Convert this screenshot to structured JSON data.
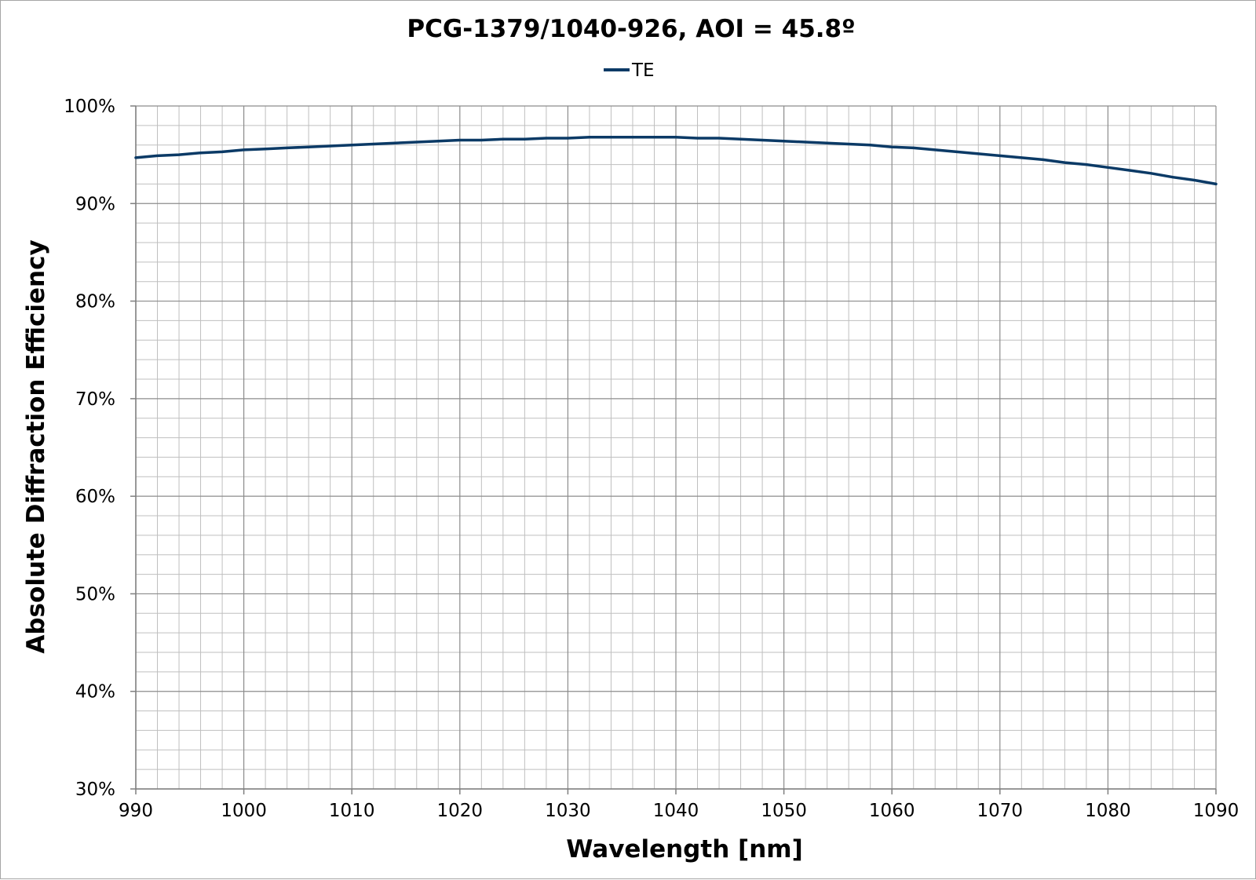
{
  "chart_data": {
    "type": "line",
    "title": "PCG-1379/1040-926, AOI = 45.8º",
    "xlabel": "Wavelength [nm]",
    "ylabel": "Absolute Diffraction Efficiency",
    "xlim": [
      990,
      1090
    ],
    "ylim": [
      30,
      100
    ],
    "x_major_step": 10,
    "x_minor_step": 2,
    "y_major_step": 10,
    "y_minor_step": 2,
    "x_ticks": [
      "990",
      "1000",
      "1010",
      "1020",
      "1030",
      "1040",
      "1050",
      "1060",
      "1070",
      "1080",
      "1090"
    ],
    "y_ticks": [
      "30%",
      "40%",
      "50%",
      "60%",
      "70%",
      "80%",
      "90%",
      "100%"
    ],
    "grid": true,
    "legend_position": "top-center",
    "series": [
      {
        "name": "TE",
        "color": "#0b3a66",
        "x": [
          990,
          992,
          994,
          996,
          998,
          1000,
          1002,
          1004,
          1006,
          1008,
          1010,
          1012,
          1014,
          1016,
          1018,
          1020,
          1022,
          1024,
          1026,
          1028,
          1030,
          1032,
          1034,
          1036,
          1038,
          1040,
          1042,
          1044,
          1046,
          1048,
          1050,
          1052,
          1054,
          1056,
          1058,
          1060,
          1062,
          1064,
          1066,
          1068,
          1070,
          1072,
          1074,
          1076,
          1078,
          1080,
          1082,
          1084,
          1086,
          1088,
          1090
        ],
        "y": [
          94.7,
          94.9,
          95.0,
          95.2,
          95.3,
          95.5,
          95.6,
          95.7,
          95.8,
          95.9,
          96.0,
          96.1,
          96.2,
          96.3,
          96.4,
          96.5,
          96.5,
          96.6,
          96.6,
          96.7,
          96.7,
          96.8,
          96.8,
          96.8,
          96.8,
          96.8,
          96.7,
          96.7,
          96.6,
          96.5,
          96.4,
          96.3,
          96.2,
          96.1,
          96.0,
          95.8,
          95.7,
          95.5,
          95.3,
          95.1,
          94.9,
          94.7,
          94.5,
          94.2,
          94.0,
          93.7,
          93.4,
          93.1,
          92.7,
          92.4,
          92.0
        ]
      }
    ]
  }
}
